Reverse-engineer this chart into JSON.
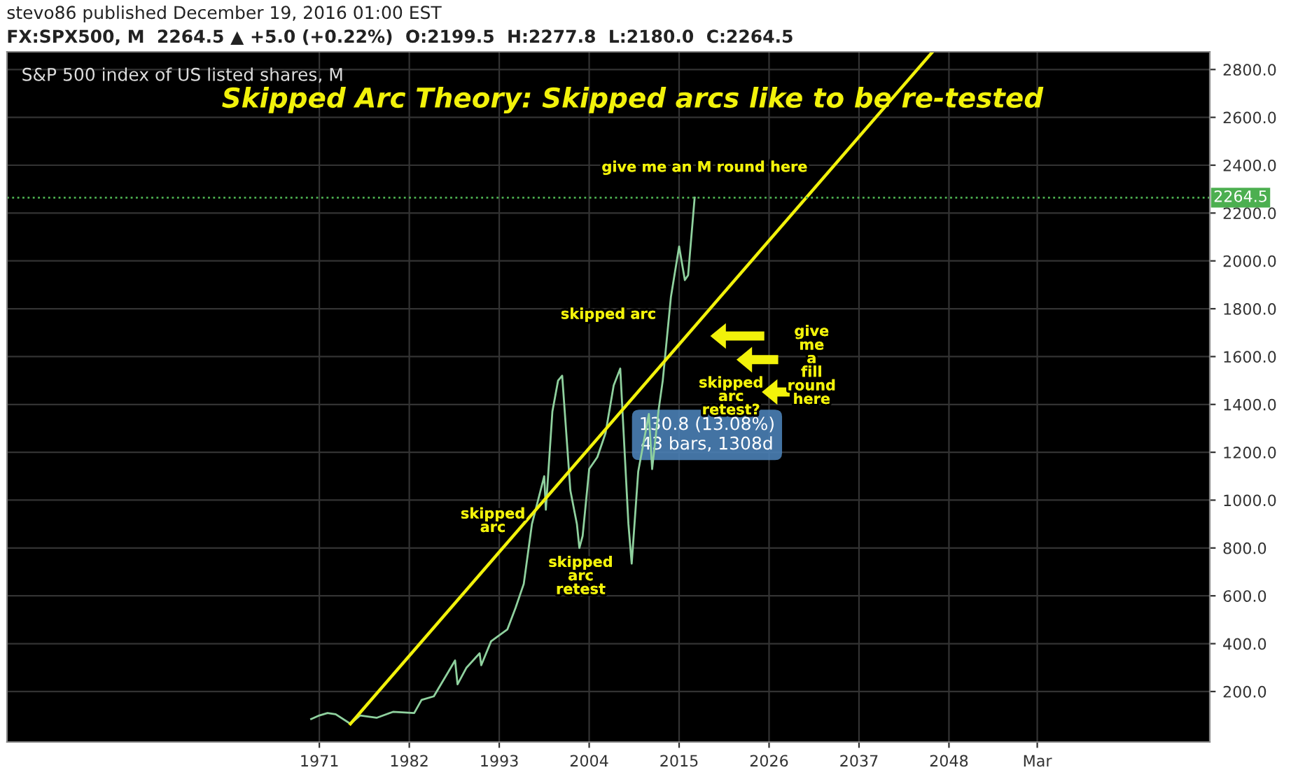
{
  "chart_data": {
    "type": "line",
    "title": "Skipped Arc Theory: Skipped arcs like to be re-tested",
    "subtitle": "S&P 500 index of US listed shares, M",
    "annotations": [
      "stevo86 published December 19, 2016 01:00 EST",
      "FX:SPX500, M  2264.5 ▲ +5.0 (+0.22%)  O:2199.5  H:2277.8  L:2180.0  C:2264.5",
      "give me an M round here",
      "skipped arc",
      "skipped\narc",
      "skipped\narc\nretest",
      "skipped\narc\nretest?",
      "give\nme\na\nfill\nround\nhere",
      "130.8 (13.08%)\n43 bars, 1308d"
    ],
    "series": [
      {
        "color": "#8fd19e",
        "x": [
          1970.0,
          1971.0,
          1972.0,
          1973.0,
          1974.8,
          1976.0,
          1978.0,
          1980.0,
          1982.6,
          1983.5,
          1985.0,
          1987.6,
          1987.9,
          1989.0,
          1990.6,
          1990.8,
          1992.0,
          1994.0,
          1995.0,
          1996.0,
          1997.0,
          1998.5,
          1998.7,
          1999.5,
          2000.2,
          2000.7,
          2001.7,
          2002.5,
          2002.8,
          2003.2,
          2004.0,
          2005.0,
          2006.0,
          2007.0,
          2007.8,
          2008.8,
          2009.2,
          2010.0,
          2011.3,
          2011.7,
          2012.5,
          2013.0,
          2014.0,
          2015.0,
          2015.7,
          2016.1,
          2016.9
        ],
        "values": [
          85,
          100,
          110,
          105,
          65,
          100,
          90,
          115,
          110,
          165,
          180,
          330,
          230,
          300,
          360,
          310,
          410,
          460,
          550,
          650,
          900,
          1100,
          960,
          1370,
          1500,
          1520,
          1040,
          900,
          800,
          850,
          1130,
          1180,
          1280,
          1480,
          1550,
          900,
          735,
          1120,
          1360,
          1130,
          1380,
          1500,
          1850,
          2060,
          1920,
          1940,
          2264.5
        ]
      },
      {
        "type": "line",
        "color": "#f2f20a",
        "x": [
          1974.8,
          2046.0
        ],
        "values": [
          65,
          2874
        ]
      }
    ],
    "xlim": [
      1932.8,
      2079.9
    ],
    "xticks": [
      1971,
      1982,
      1993,
      2004,
      2015,
      2026,
      2037,
      2048,
      {
        "value": 2058.8,
        "label": "Mar"
      }
    ],
    "ylim": [
      -11,
      2874
    ],
    "yticks": [
      {
        "value": 200,
        "label": "200.0"
      },
      {
        "value": 400,
        "label": "400.0"
      },
      {
        "value": 600,
        "label": "600.0"
      },
      {
        "value": 800,
        "label": "800.0"
      },
      {
        "value": 1000,
        "label": "1000.0"
      },
      {
        "value": 1200,
        "label": "1200.0"
      },
      {
        "value": 1400,
        "label": "1400.0"
      },
      {
        "value": 1600,
        "label": "1600.0"
      },
      {
        "value": 1800,
        "label": "1800.0"
      },
      {
        "value": 2000,
        "label": "2000.0"
      },
      {
        "value": 2200,
        "label": "2200.0"
      },
      {
        "value": 2400,
        "label": "2400.0"
      },
      {
        "value": 2600,
        "label": "2600.0"
      },
      {
        "value": 2800,
        "label": "2800.0"
      }
    ],
    "ref_lines": [
      {
        "axis": "y",
        "value": 2264.5,
        "label": "2264.5",
        "color": "#4caf50",
        "line_style": "dotted"
      }
    ],
    "grid": true
  }
}
